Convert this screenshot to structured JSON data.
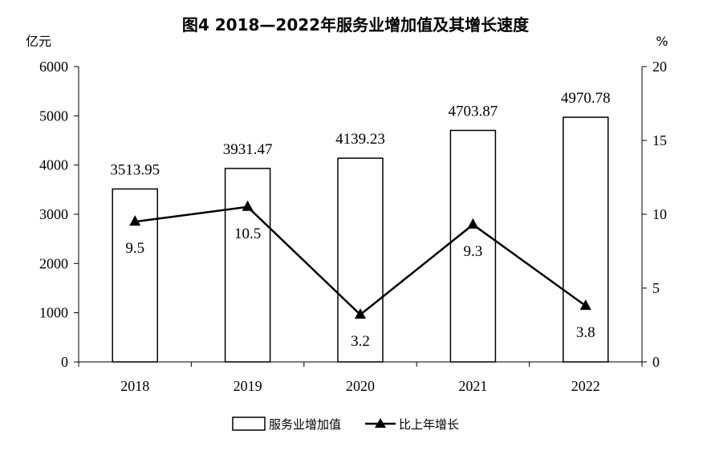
{
  "chart_data": {
    "type": "bar+line",
    "title": "图4  2018—2022年服务业增加值及其增长速度",
    "categories": [
      "2018",
      "2019",
      "2020",
      "2021",
      "2022"
    ],
    "y_left": {
      "unit": "亿元",
      "ylim": [
        0,
        6000
      ],
      "ticks": [
        0,
        1000,
        2000,
        3000,
        4000,
        5000,
        6000
      ]
    },
    "y_right": {
      "unit": "%",
      "ylim": [
        0,
        20
      ],
      "ticks": [
        0,
        5,
        10,
        15,
        20
      ]
    },
    "series": [
      {
        "name": "服务业增加值",
        "type": "bar",
        "axis": "left",
        "values": [
          3513.95,
          3931.47,
          4139.23,
          4703.87,
          4970.78
        ],
        "labels": [
          "3513.95",
          "3931.47",
          "4139.23",
          "4703.87",
          "4970.78"
        ]
      },
      {
        "name": "比上年增长",
        "type": "line",
        "axis": "right",
        "values": [
          9.5,
          10.5,
          3.2,
          9.3,
          3.8
        ],
        "labels": [
          "9.5",
          "10.5",
          "3.2",
          "9.3",
          "3.8"
        ]
      }
    ],
    "grid": false,
    "legend": "bottom-center",
    "colors": {
      "bar_fill": "#ffffff",
      "bar_stroke": "#000000",
      "line": "#000000"
    }
  }
}
